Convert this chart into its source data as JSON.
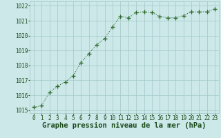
{
  "x": [
    0,
    1,
    2,
    3,
    4,
    5,
    6,
    7,
    8,
    9,
    10,
    11,
    12,
    13,
    14,
    15,
    16,
    17,
    18,
    19,
    20,
    21,
    22,
    23
  ],
  "y": [
    1015.2,
    1015.3,
    1016.2,
    1016.6,
    1016.9,
    1017.3,
    1018.2,
    1018.8,
    1019.4,
    1019.8,
    1020.6,
    1021.3,
    1021.2,
    1021.55,
    1021.6,
    1021.55,
    1021.3,
    1021.2,
    1021.2,
    1021.35,
    1021.6,
    1021.6,
    1021.6,
    1021.8
  ],
  "line_color": "#2d6a2d",
  "marker_color": "#2d6a2d",
  "bg_color": "#cce8e8",
  "grid_color": "#a0c8c8",
  "text_color": "#1a4a1a",
  "xlabel": "Graphe pression niveau de la mer (hPa)",
  "ylim": [
    1014.8,
    1022.3
  ],
  "yticks": [
    1015,
    1016,
    1017,
    1018,
    1019,
    1020,
    1021,
    1022
  ],
  "xticks": [
    0,
    1,
    2,
    3,
    4,
    5,
    6,
    7,
    8,
    9,
    10,
    11,
    12,
    13,
    14,
    15,
    16,
    17,
    18,
    19,
    20,
    21,
    22,
    23
  ],
  "xlim": [
    -0.5,
    23.5
  ],
  "tick_fontsize": 5.5,
  "xlabel_fontsize": 7.5
}
